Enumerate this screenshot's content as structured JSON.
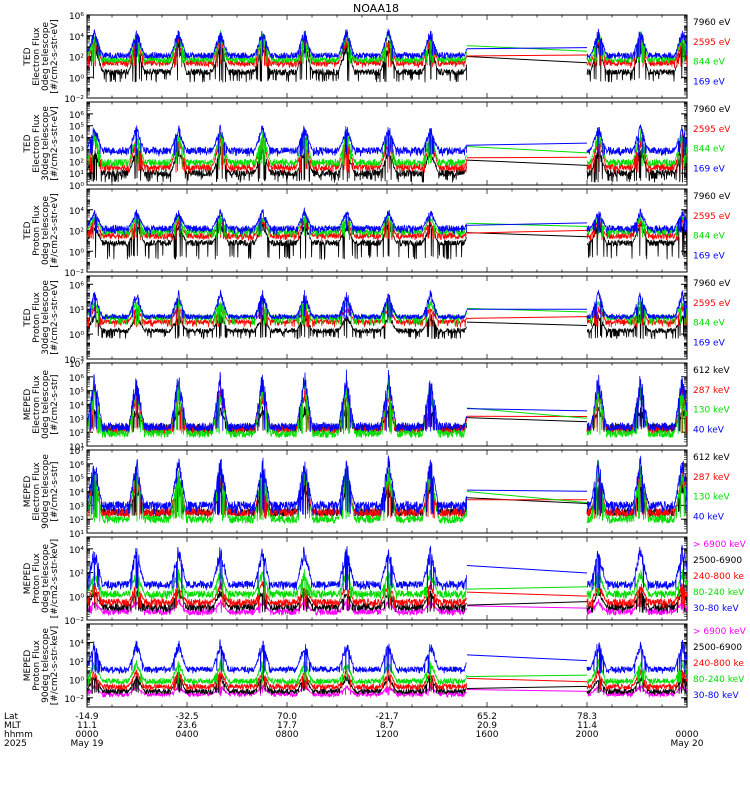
{
  "title": "NOAA18",
  "colors": {
    "black": "#000000",
    "red": "#ff0000",
    "green": "#00dd00",
    "blue": "#0000ff",
    "magenta": "#ff00ff"
  },
  "chart_data": {
    "type": "line",
    "title": "NOAA18",
    "x_axis": {
      "quantity": "hhmm",
      "range_hours": [
        0,
        24
      ],
      "ticks": [
        "0000",
        "0400",
        "0800",
        "1200",
        "1600",
        "2000"
      ],
      "date_start": "May 19",
      "date_end": "May 20",
      "year": "2025",
      "data_gap_hours": [
        15.2,
        20.0
      ]
    },
    "footer": {
      "row_labels": [
        "Lat",
        "MLT",
        "hhmm",
        "2025"
      ],
      "lat": [
        "-14.9",
        "-32.5",
        "70.0",
        "-21.7",
        "65.2",
        "78.3"
      ],
      "mlt": [
        "11.1",
        "23.6",
        "17.7",
        "8.7",
        "20.9",
        "11.4"
      ]
    },
    "panels": [
      {
        "ylabel": [
          "TED",
          "Electron Flux",
          "0deg telescope",
          "[#/cm2-s-str-eV]"
        ],
        "yscale": "log",
        "ylim_exp": [
          -2,
          6
        ],
        "tick_labels": [
          "10⁶",
          "10⁴",
          "10²",
          "10⁰",
          "10⁻²"
        ],
        "tick_exps": [
          6,
          4,
          2,
          0,
          -2
        ],
        "series": [
          {
            "name": "7960 eV",
            "color": "black",
            "base": 0.5,
            "peak": 3.5,
            "floor": -0.5
          },
          {
            "name": "2595 eV",
            "color": "red",
            "base": 1.4,
            "peak": 3.9,
            "floor": 0.9
          },
          {
            "name": "844 eV",
            "color": "green",
            "base": 1.7,
            "peak": 4.4,
            "floor": 1.3
          },
          {
            "name": "169 eV",
            "color": "blue",
            "base": 2.1,
            "peak": 4.6,
            "floor": 1.8
          }
        ]
      },
      {
        "ylabel": [
          "TED",
          "Electron Flux",
          "30deg telescope",
          "[#/cm2-s-str-eV]"
        ],
        "yscale": "log",
        "ylim_exp": [
          0,
          7
        ],
        "tick_labels": [
          "10⁶",
          "10⁵",
          "10⁴",
          "10³",
          "10²",
          "10¹",
          "10⁰"
        ],
        "tick_exps": [
          6,
          5,
          4,
          3,
          2,
          1,
          0
        ],
        "series": [
          {
            "name": "7960 eV",
            "color": "black",
            "base": 1.0,
            "peak": 3.2,
            "floor": 0.2
          },
          {
            "name": "2595 eV",
            "color": "red",
            "base": 1.5,
            "peak": 4.3,
            "floor": 1.0
          },
          {
            "name": "844 eV",
            "color": "green",
            "base": 1.9,
            "peak": 4.6,
            "floor": 1.5
          },
          {
            "name": "169 eV",
            "color": "blue",
            "base": 2.9,
            "peak": 5.0,
            "floor": 2.4
          }
        ]
      },
      {
        "ylabel": [
          "TED",
          "Proton Flux",
          "0deg telescope",
          "[#/cm2-s-str-eV]"
        ],
        "yscale": "log",
        "ylim_exp": [
          -2,
          6
        ],
        "tick_labels": [
          "10⁴",
          "10²",
          "10⁰",
          "10⁻²"
        ],
        "tick_exps": [
          4,
          2,
          0,
          -2
        ],
        "series": [
          {
            "name": "7960 eV",
            "color": "black",
            "base": 0.8,
            "peak": 2.8,
            "floor": -0.8
          },
          {
            "name": "2595 eV",
            "color": "red",
            "base": 1.5,
            "peak": 3.2,
            "floor": 1.0
          },
          {
            "name": "844 eV",
            "color": "green",
            "base": 1.9,
            "peak": 3.5,
            "floor": 1.3
          },
          {
            "name": "169 eV",
            "color": "blue",
            "base": 2.2,
            "peak": 4.0,
            "floor": 1.6
          }
        ]
      },
      {
        "ylabel": [
          "TED",
          "Proton Flux",
          "30deg telescope",
          "[#/cm2-s-str-eV]"
        ],
        "yscale": "log",
        "ylim_exp": [
          -3,
          7
        ],
        "tick_labels": [
          "10⁶",
          "10³",
          "10⁰",
          "10⁻³"
        ],
        "tick_exps": [
          6,
          3,
          0,
          -3
        ],
        "series": [
          {
            "name": "7960 eV",
            "color": "black",
            "base": 0.4,
            "peak": 2.5,
            "floor": -0.6
          },
          {
            "name": "2595 eV",
            "color": "red",
            "base": 1.5,
            "peak": 3.5,
            "floor": 0.8
          },
          {
            "name": "844 eV",
            "color": "green",
            "base": 2.0,
            "peak": 4.2,
            "floor": 1.0
          },
          {
            "name": "169 eV",
            "color": "blue",
            "base": 2.1,
            "peak": 5.1,
            "floor": 1.8
          }
        ]
      },
      {
        "ylabel": [
          "MEPED",
          "Electron Flux",
          "0deg telescope",
          "[#/cm2-s-str]"
        ],
        "yscale": "log",
        "ylim_exp": [
          1,
          7
        ],
        "tick_labels": [
          "10⁷",
          "10⁶",
          "10⁵",
          "10⁴",
          "10³",
          "10²",
          "10¹"
        ],
        "tick_exps": [
          7,
          6,
          5,
          4,
          3,
          2,
          1
        ],
        "series": [
          {
            "name": "612 keV",
            "color": "black",
            "base": 2.3,
            "peak": 3.8,
            "floor": 2.0
          },
          {
            "name": "287 keV",
            "color": "red",
            "base": 2.2,
            "peak": 5.3,
            "floor": 1.9
          },
          {
            "name": "130 keV",
            "color": "green",
            "base": 1.9,
            "peak": 5.6,
            "floor": 1.8
          },
          {
            "name": "40 keV",
            "color": "blue",
            "base": 2.4,
            "peak": 6.2,
            "floor": 2.0
          }
        ]
      },
      {
        "ylabel": [
          "MEPED",
          "Electron Flux",
          "90deg telescope",
          "[#/cm2-s-str]"
        ],
        "yscale": "log",
        "ylim_exp": [
          1,
          7
        ],
        "tick_labels": [
          "10⁷",
          "10⁶",
          "10⁵",
          "10⁴",
          "10³",
          "10²",
          "10¹"
        ],
        "tick_exps": [
          7,
          6,
          5,
          4,
          3,
          2,
          1
        ],
        "series": [
          {
            "name": "612 keV",
            "color": "black",
            "base": 2.5,
            "peak": 4.6,
            "floor": 2.2
          },
          {
            "name": "287 keV",
            "color": "red",
            "base": 2.5,
            "peak": 5.5,
            "floor": 2.0
          },
          {
            "name": "130 keV",
            "color": "green",
            "base": 2.0,
            "peak": 6.0,
            "floor": 1.8
          },
          {
            "name": "40 keV",
            "color": "blue",
            "base": 3.0,
            "peak": 6.4,
            "floor": 2.3
          }
        ]
      },
      {
        "ylabel": [
          "MEPED",
          "Proton Flux",
          "0deg telescope",
          "[#/cm2-s-str-keV]"
        ],
        "yscale": "log",
        "ylim_exp": [
          -2,
          5
        ],
        "tick_labels": [
          "10⁴",
          "10²",
          "10⁰",
          "10⁻²"
        ],
        "tick_exps": [
          4,
          2,
          0,
          -2
        ],
        "series": [
          {
            "name": "> 6900 keV",
            "color": "magenta",
            "base": -1.3,
            "peak": -0.3,
            "floor": -1.5
          },
          {
            "name": "2500-6900",
            "color": "black",
            "base": -0.9,
            "peak": 0.6,
            "floor": -1.4
          },
          {
            "name": "240-800 ke",
            "color": "red",
            "base": -0.5,
            "peak": 1.2,
            "floor": -1.0
          },
          {
            "name": "80-240 keV",
            "color": "green",
            "base": 0.2,
            "peak": 2.2,
            "floor": -0.3
          },
          {
            "name": "30-80 keV",
            "color": "blue",
            "base": 1.0,
            "peak": 4.2,
            "floor": 0.5
          }
        ]
      },
      {
        "ylabel": [
          "MEPED",
          "Proton Flux",
          "90deg telescope",
          "[#/cm2-s-str-keV]"
        ],
        "yscale": "log",
        "ylim_exp": [
          -3,
          6
        ],
        "tick_labels": [
          "10⁴",
          "10²",
          "10⁰",
          "10⁻²"
        ],
        "tick_exps": [
          4,
          2,
          0,
          -2
        ],
        "series": [
          {
            "name": "> 6900 keV",
            "color": "magenta",
            "base": -1.6,
            "peak": -0.6,
            "floor": -1.8
          },
          {
            "name": "2500-6900",
            "color": "black",
            "base": -1.3,
            "peak": 0.5,
            "floor": -1.6
          },
          {
            "name": "240-800 ke",
            "color": "red",
            "base": -0.8,
            "peak": 1.0,
            "floor": -1.2
          },
          {
            "name": "80-240 keV",
            "color": "green",
            "base": -0.2,
            "peak": 2.0,
            "floor": -0.6
          },
          {
            "name": "30-80 keV",
            "color": "blue",
            "base": 1.1,
            "peak": 4.2,
            "floor": 0.6
          }
        ]
      }
    ]
  }
}
